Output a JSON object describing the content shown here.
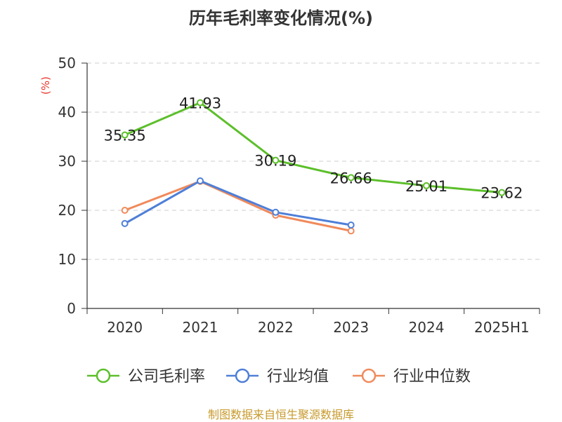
{
  "chart_data": {
    "type": "line",
    "title": "历年毛利率变化情况(%)",
    "unit_label": "(%)",
    "categories": [
      "2020",
      "2021",
      "2022",
      "2023",
      "2024",
      "2025H1"
    ],
    "y_ticks": [
      "0",
      "10",
      "20",
      "30",
      "40",
      "50"
    ],
    "ylim": [
      0,
      50
    ],
    "grid": true,
    "legend_position": "bottom",
    "series": [
      {
        "name": "公司毛利率",
        "color": "#5cbf2a",
        "values": [
          35.35,
          41.93,
          30.19,
          26.66,
          25.01,
          23.62
        ],
        "labels": [
          "35.35",
          "41.93",
          "30.19",
          "26.66",
          "25.01",
          "23.62"
        ]
      },
      {
        "name": "行业均值",
        "color": "#4e7fd8",
        "values": [
          17.3,
          26.0,
          19.6,
          17.0,
          null,
          null
        ]
      },
      {
        "name": "行业中位数",
        "color": "#f08a5b",
        "values": [
          20.0,
          25.9,
          19.0,
          15.8,
          null,
          null
        ]
      }
    ]
  },
  "footer": {
    "source": "制图数据来自恒生聚源数据库"
  }
}
